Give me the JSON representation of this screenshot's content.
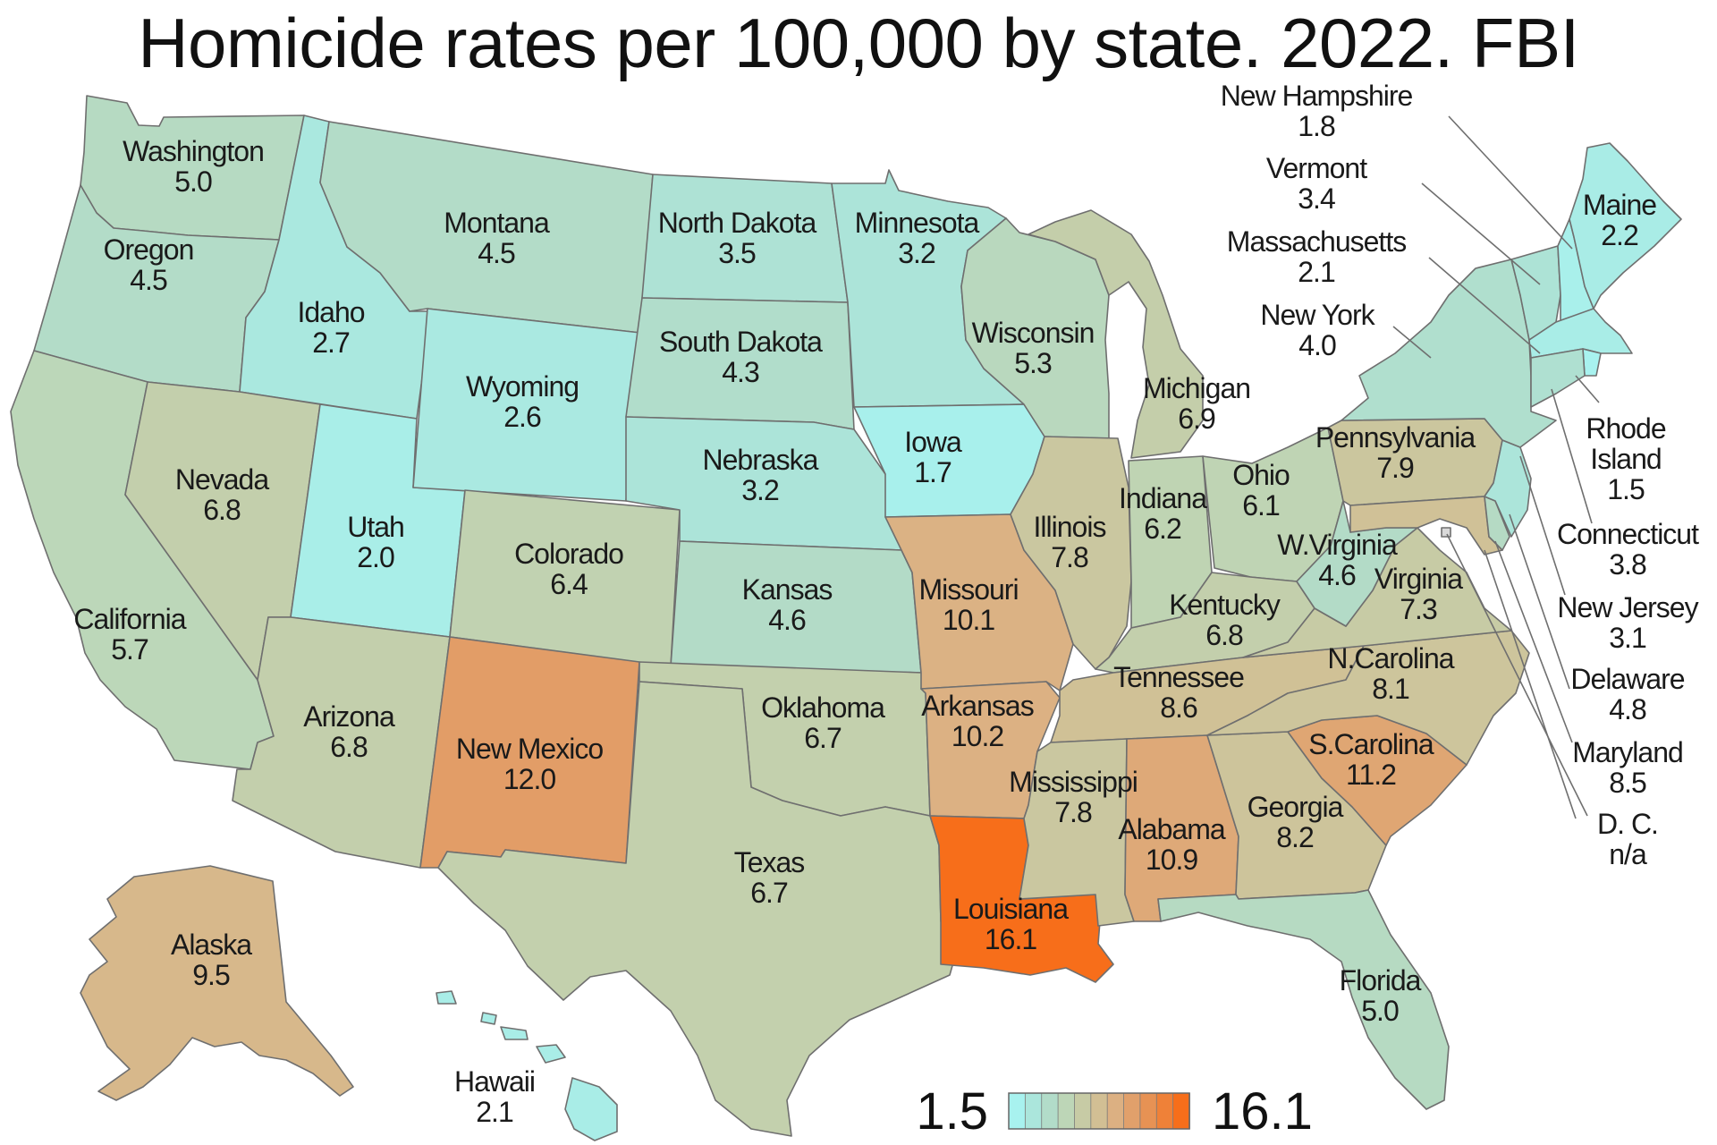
{
  "title": "Homicide rates per 100,000 by state. 2022. FBI",
  "legend": {
    "min_label": "1.5",
    "max_label": "16.1",
    "min": 1.5,
    "max": 16.1,
    "colors": [
      "#a8f2ef",
      "#abe6dc",
      "#b2dcc9",
      "#bdd6b7",
      "#c7cba5",
      "#d2bf94",
      "#dcb082",
      "#e1a06b",
      "#e79254",
      "#ef8138",
      "#f76e1a"
    ]
  },
  "states": [
    {
      "id": "washington",
      "name": "Washington",
      "value": "5.0",
      "rate": 5.0
    },
    {
      "id": "oregon",
      "name": "Oregon",
      "value": "4.5",
      "rate": 4.5
    },
    {
      "id": "california",
      "name": "California",
      "value": "5.7",
      "rate": 5.7
    },
    {
      "id": "idaho",
      "name": "Idaho",
      "value": "2.7",
      "rate": 2.7
    },
    {
      "id": "nevada",
      "name": "Nevada",
      "value": "6.8",
      "rate": 6.8
    },
    {
      "id": "utah",
      "name": "Utah",
      "value": "2.0",
      "rate": 2.0
    },
    {
      "id": "arizona",
      "name": "Arizona",
      "value": "6.8",
      "rate": 6.8
    },
    {
      "id": "montana",
      "name": "Montana",
      "value": "4.5",
      "rate": 4.5
    },
    {
      "id": "wyoming",
      "name": "Wyoming",
      "value": "2.6",
      "rate": 2.6
    },
    {
      "id": "colorado",
      "name": "Colorado",
      "value": "6.4",
      "rate": 6.4
    },
    {
      "id": "new-mexico",
      "name": "New Mexico",
      "value": "12.0",
      "rate": 12.0
    },
    {
      "id": "north-dakota",
      "name": "North Dakota",
      "value": "3.5",
      "rate": 3.5
    },
    {
      "id": "south-dakota",
      "name": "South Dakota",
      "value": "4.3",
      "rate": 4.3
    },
    {
      "id": "nebraska",
      "name": "Nebraska",
      "value": "3.2",
      "rate": 3.2
    },
    {
      "id": "kansas",
      "name": "Kansas",
      "value": "4.6",
      "rate": 4.6
    },
    {
      "id": "oklahoma",
      "name": "Oklahoma",
      "value": "6.7",
      "rate": 6.7
    },
    {
      "id": "texas",
      "name": "Texas",
      "value": "6.7",
      "rate": 6.7
    },
    {
      "id": "minnesota",
      "name": "Minnesota",
      "value": "3.2",
      "rate": 3.2
    },
    {
      "id": "iowa",
      "name": "Iowa",
      "value": "1.7",
      "rate": 1.7
    },
    {
      "id": "missouri",
      "name": "Missouri",
      "value": "10.1",
      "rate": 10.1
    },
    {
      "id": "arkansas",
      "name": "Arkansas",
      "value": "10.2",
      "rate": 10.2
    },
    {
      "id": "louisiana",
      "name": "Louisiana",
      "value": "16.1",
      "rate": 16.1
    },
    {
      "id": "wisconsin",
      "name": "Wisconsin",
      "value": "5.3",
      "rate": 5.3
    },
    {
      "id": "illinois",
      "name": "Illinois",
      "value": "7.8",
      "rate": 7.8
    },
    {
      "id": "michigan",
      "name": "Michigan",
      "value": "6.9",
      "rate": 6.9
    },
    {
      "id": "indiana",
      "name": "Indiana",
      "value": "6.2",
      "rate": 6.2
    },
    {
      "id": "ohio",
      "name": "Ohio",
      "value": "6.1",
      "rate": 6.1
    },
    {
      "id": "kentucky",
      "name": "Kentucky",
      "value": "6.8",
      "rate": 6.8
    },
    {
      "id": "tennessee",
      "name": "Tennessee",
      "value": "8.6",
      "rate": 8.6
    },
    {
      "id": "mississippi",
      "name": "Mississippi",
      "value": "7.8",
      "rate": 7.8
    },
    {
      "id": "alabama",
      "name": "Alabama",
      "value": "10.9",
      "rate": 10.9
    },
    {
      "id": "georgia",
      "name": "Georgia",
      "value": "8.2",
      "rate": 8.2
    },
    {
      "id": "florida",
      "name": "Florida",
      "value": "5.0",
      "rate": 5.0
    },
    {
      "id": "south-carolina",
      "name": "S.Carolina",
      "value": "11.2",
      "rate": 11.2
    },
    {
      "id": "north-carolina",
      "name": "N.Carolina",
      "value": "8.1",
      "rate": 8.1
    },
    {
      "id": "virginia",
      "name": "Virginia",
      "value": "7.3",
      "rate": 7.3
    },
    {
      "id": "west-virginia",
      "name": "W.Virginia",
      "value": "4.6",
      "rate": 4.6
    },
    {
      "id": "pennsylvania",
      "name": "Pennsylvania",
      "value": "7.9",
      "rate": 7.9
    },
    {
      "id": "new-york",
      "name": "New York",
      "value": "4.0",
      "rate": 4.0
    },
    {
      "id": "vermont",
      "name": "Vermont",
      "value": "3.4",
      "rate": 3.4
    },
    {
      "id": "new-hampshire",
      "name": "New Hampshire",
      "value": "1.8",
      "rate": 1.8
    },
    {
      "id": "maine",
      "name": "Maine",
      "value": "2.2",
      "rate": 2.2
    },
    {
      "id": "massachusetts",
      "name": "Massachusetts",
      "value": "2.1",
      "rate": 2.1
    },
    {
      "id": "rhode-island",
      "name": "Rhode Island",
      "value": "1.5",
      "rate": 1.5
    },
    {
      "id": "connecticut",
      "name": "Connecticut",
      "value": "3.8",
      "rate": 3.8
    },
    {
      "id": "new-jersey",
      "name": "New Jersey",
      "value": "3.1",
      "rate": 3.1
    },
    {
      "id": "delaware",
      "name": "Delaware",
      "value": "4.8",
      "rate": 4.8
    },
    {
      "id": "maryland",
      "name": "Maryland",
      "value": "8.5",
      "rate": 8.5
    },
    {
      "id": "dc",
      "name": "D. C.",
      "value": "n/a",
      "rate": null
    },
    {
      "id": "alaska",
      "name": "Alaska",
      "value": "9.5",
      "rate": 9.5
    },
    {
      "id": "hawaii",
      "name": "Hawaii",
      "value": "2.1",
      "rate": 2.1
    }
  ]
}
